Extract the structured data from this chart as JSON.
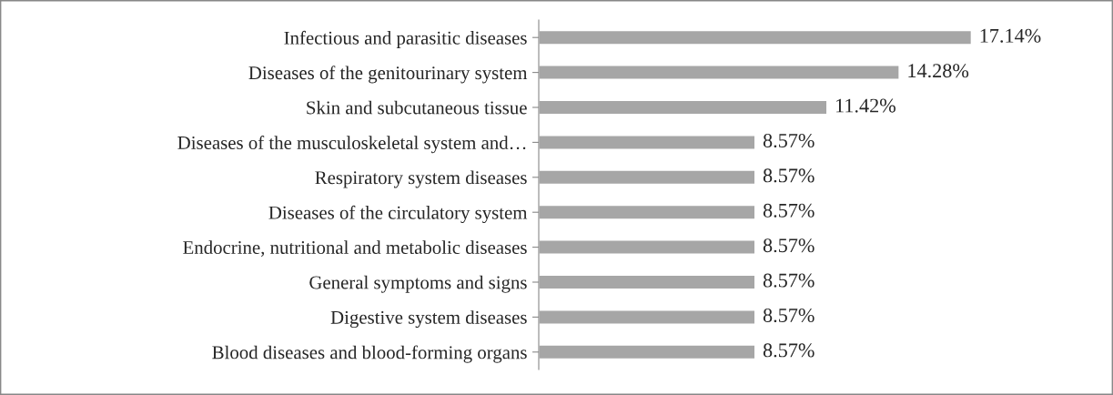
{
  "chart_data": {
    "type": "bar",
    "orientation": "horizontal",
    "categories": [
      "Infectious and parasitic diseases",
      "Diseases of the genitourinary system",
      "Skin and subcutaneous tissue",
      "Diseases of the musculoskeletal system and…",
      "Respiratory system diseases",
      "Diseases of the circulatory system",
      "Endocrine, nutritional and metabolic diseases",
      "General symptoms and signs",
      "Digestive system diseases",
      "Blood diseases and blood-forming organs"
    ],
    "values": [
      17.14,
      14.28,
      11.42,
      8.57,
      8.57,
      8.57,
      8.57,
      8.57,
      8.57,
      8.57
    ],
    "value_labels": [
      "17.14%",
      "14.28%",
      "11.42%",
      "8.57%",
      "8.57%",
      "8.57%",
      "8.57%",
      "8.57%",
      "8.57%",
      "8.57%"
    ],
    "color": "#a6a6a6",
    "grid": false,
    "legend": false,
    "tick_labels": "y"
  }
}
